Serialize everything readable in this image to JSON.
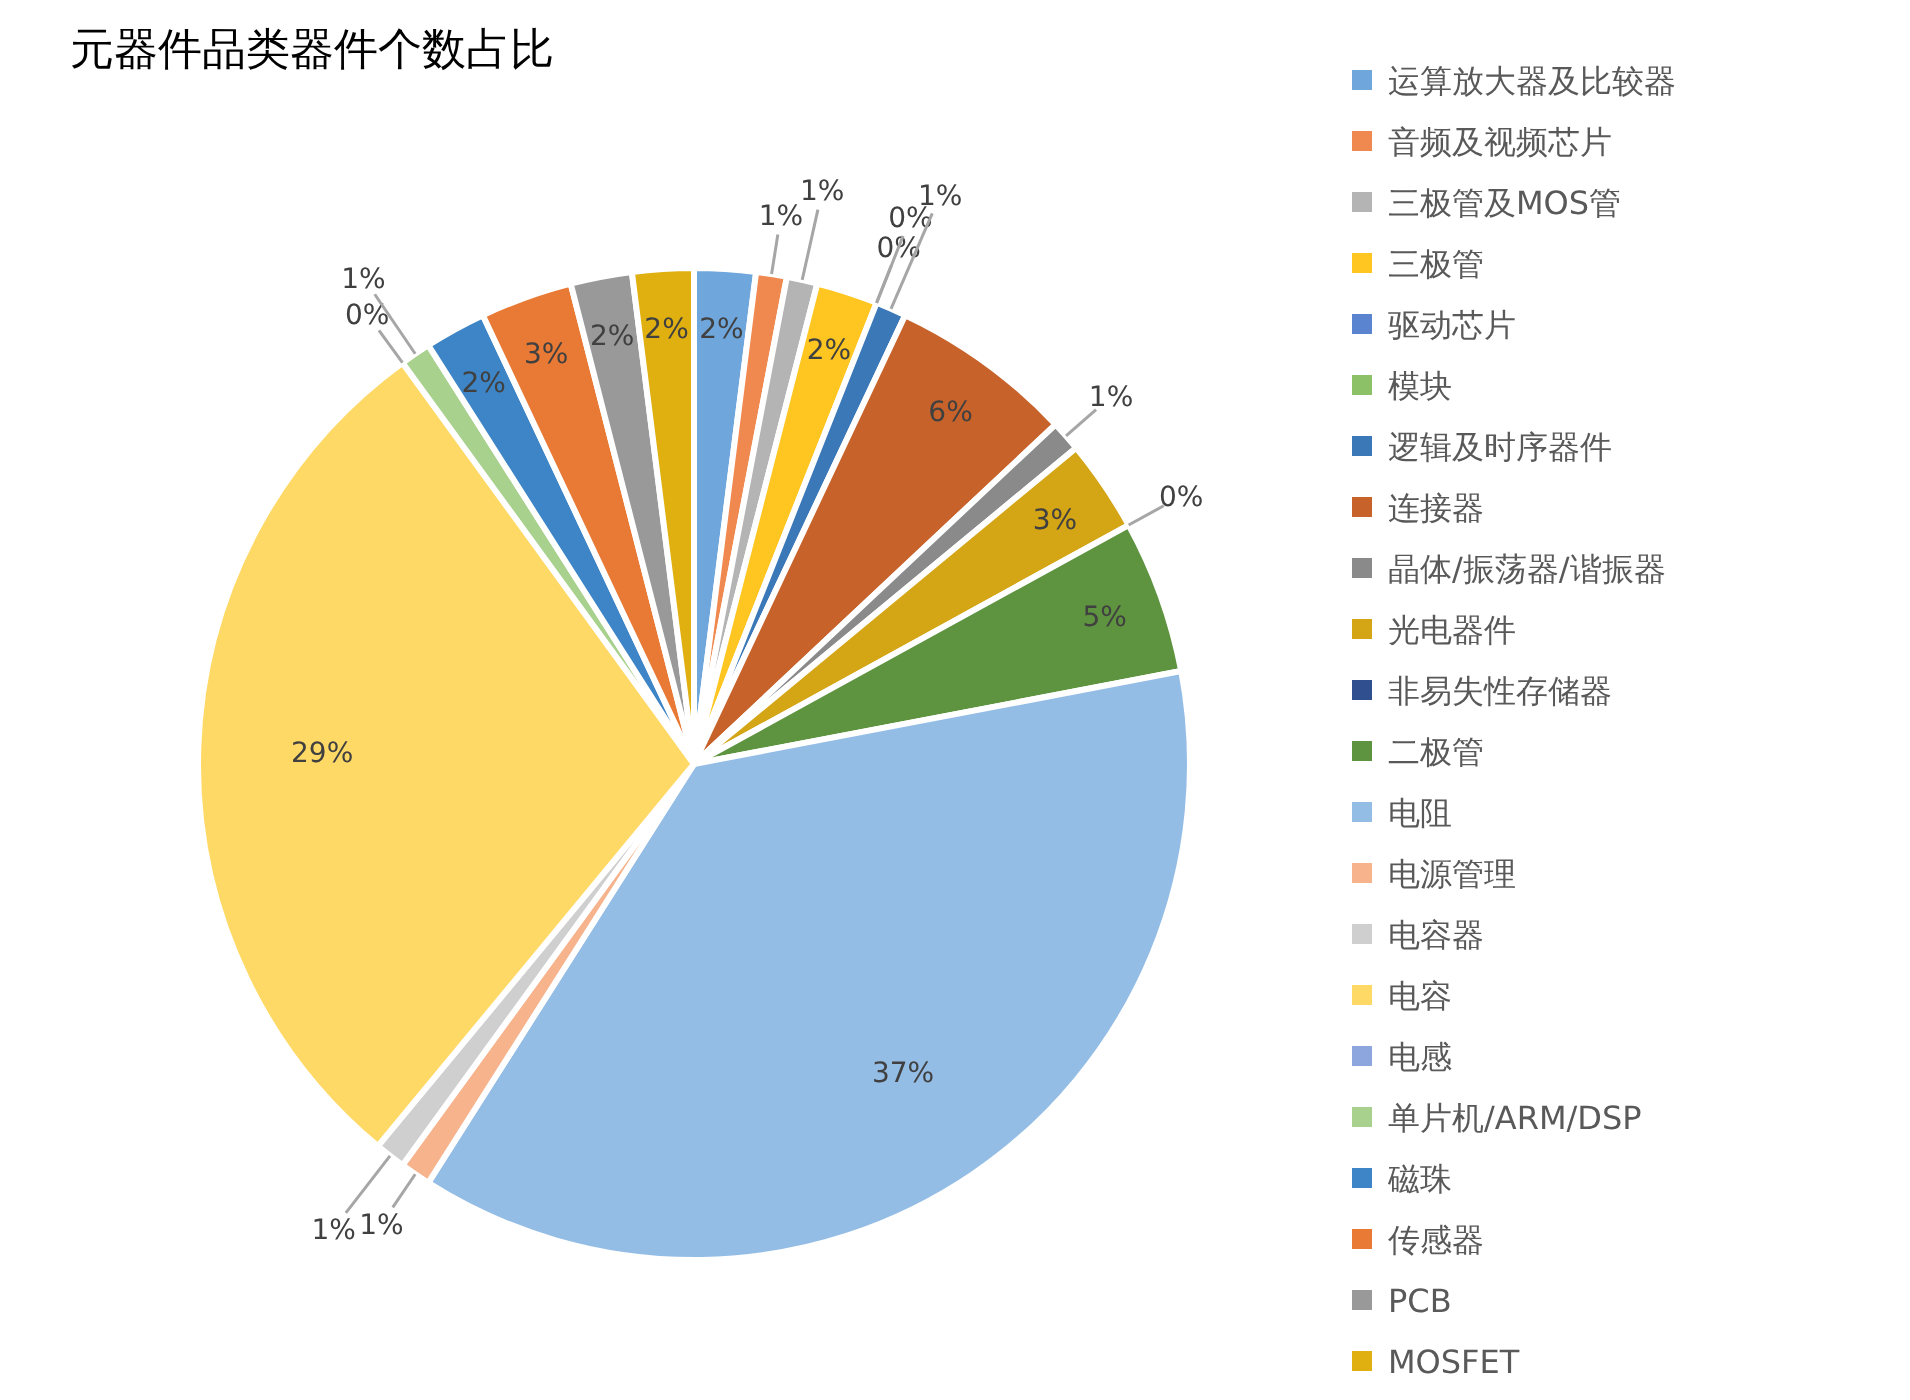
{
  "chart_data": {
    "type": "pie",
    "title": "元器件品类器件个数占比",
    "categories": [
      "运算放大器及比较器",
      "音频及视频芯片",
      "三极管及MOS管",
      "三极管",
      "驱动芯片",
      "模块",
      "逻辑及时序器件",
      "连接器",
      "晶体/振荡器/谐振器",
      "光电器件",
      "非易失性存储器",
      "二极管",
      "电阻",
      "电源管理",
      "电容器",
      "电容",
      "电感",
      "单片机/ARM/DSP",
      "磁珠",
      "传感器",
      "PCB",
      "MOSFET"
    ],
    "values": [
      2,
      1,
      1,
      2,
      0,
      0,
      1,
      6,
      1,
      3,
      0,
      5,
      37,
      1,
      1,
      29,
      0,
      1,
      2,
      3,
      2,
      2
    ],
    "value_labels": [
      "2%",
      "1%",
      "1%",
      "2%",
      "0%",
      "0%",
      "1%",
      "6%",
      "1%",
      "3%",
      "0%",
      "5%",
      "37%",
      "1%",
      "1%",
      "29%",
      "0%",
      "1%",
      "2%",
      "3%",
      "2%",
      "2%"
    ],
    "colors": [
      "#6fa6dc",
      "#f0894f",
      "#b4b4b4",
      "#ffc520",
      "#5b84d0",
      "#8cc168",
      "#3a78b8",
      "#c7622a",
      "#8a8a8a",
      "#d4a514",
      "#2f4f8f",
      "#5e9440",
      "#94bde6",
      "#f6b38c",
      "#cfcfcf",
      "#ffd966",
      "#8ea6de",
      "#a9d18e",
      "#3d85c6",
      "#e97a36",
      "#999999",
      "#e0b010"
    ],
    "legend": "right"
  }
}
